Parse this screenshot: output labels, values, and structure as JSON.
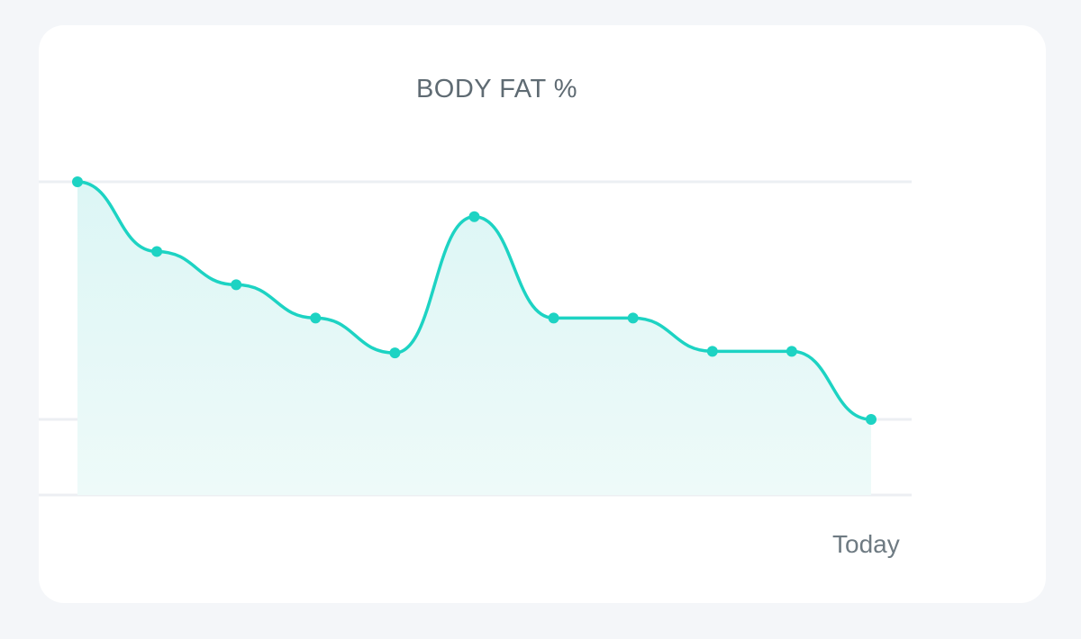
{
  "chart_data": {
    "type": "area",
    "title": "BODY FAT %",
    "xlabel": "",
    "ylabel": "",
    "ylim": [
      0,
      100
    ],
    "x_tick_labels": [
      "",
      "",
      "",
      "",
      "",
      "",
      "",
      "",
      "",
      "",
      "Today"
    ],
    "series": [
      {
        "values": [
          100,
          78,
          67.5,
          57,
          46,
          89,
          57,
          57,
          46.5,
          46.5,
          25
        ]
      }
    ],
    "grid": true,
    "legend": "none",
    "colors": {
      "line": "#1dd3c3",
      "fill": "#e6f8f8",
      "grid": "#eceff3"
    }
  }
}
